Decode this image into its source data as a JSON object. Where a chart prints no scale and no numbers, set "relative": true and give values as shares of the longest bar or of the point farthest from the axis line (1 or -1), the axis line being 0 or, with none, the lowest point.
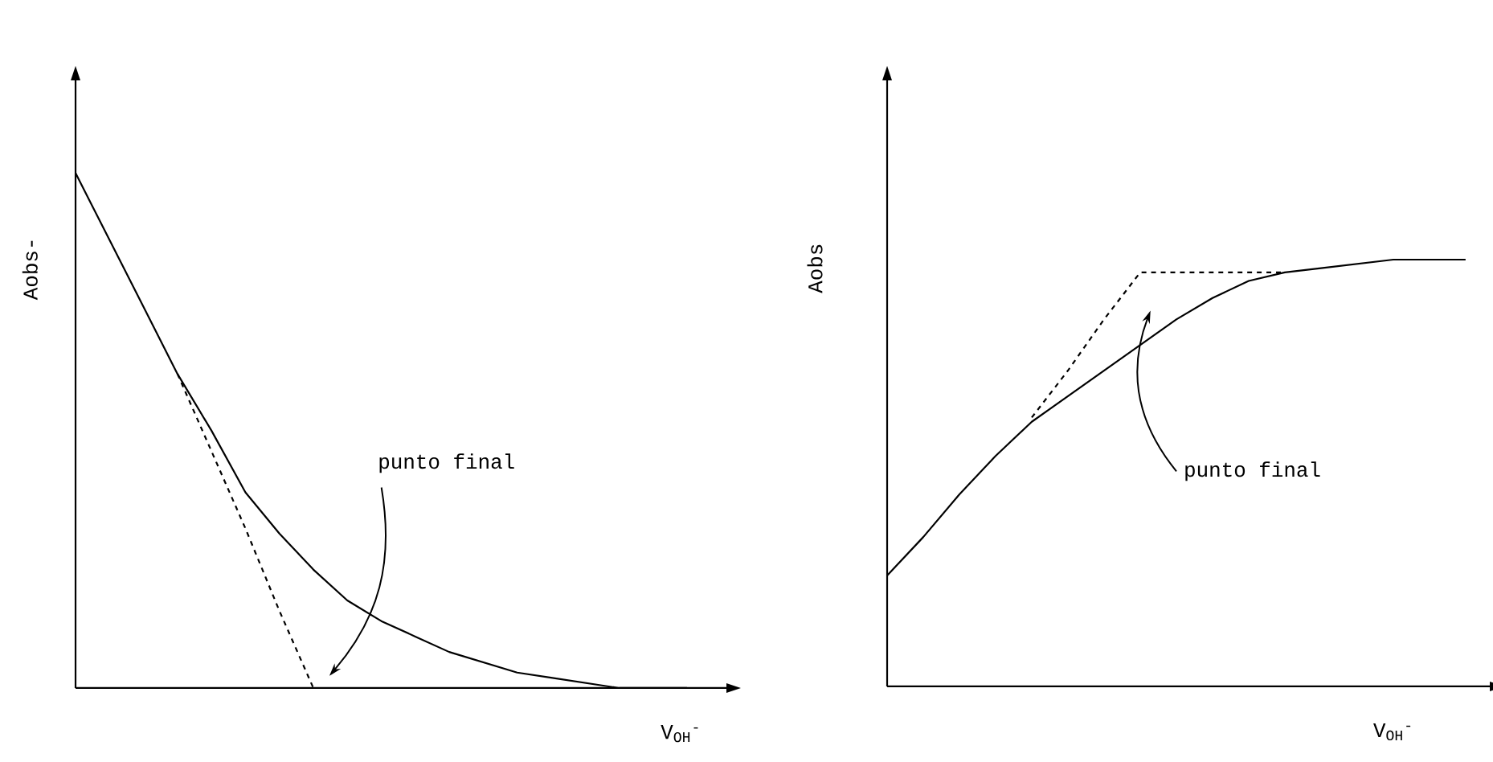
{
  "chart_data": [
    {
      "type": "line",
      "relative": true,
      "xlabel": "V$_{OH}$$^{-}$",
      "ylabel": "Aobs-",
      "annotations": [
        "punto final"
      ],
      "categories": [
        null,
        null,
        null,
        null,
        null,
        null,
        null,
        null,
        null,
        null,
        null,
        null,
        null,
        null,
        null,
        null,
        null,
        null,
        null,
        null
      ],
      "series": [
        {
          "color": "#000000",
          "line_style": "solid",
          "values": [
            1.0,
            0.87,
            0.74,
            0.61,
            0.5,
            0.38,
            0.3,
            0.23,
            0.17,
            0.13,
            0.1,
            0.07,
            0.05,
            0.03,
            0.02,
            0.01,
            0,
            0,
            0,
            null
          ]
        },
        {
          "color": "#000000",
          "line_style": "dashed",
          "values": [
            null,
            null,
            null,
            0.61,
            0.46,
            0.31,
            0.15,
            0,
            null,
            null,
            null,
            null,
            null,
            null,
            null,
            null,
            null,
            null,
            null,
            null
          ]
        }
      ]
    },
    {
      "type": "line",
      "relative": true,
      "xlabel": "V$_{OH}$$^{-}$",
      "ylabel": "Aobs",
      "annotations": [
        "punto final"
      ],
      "categories": [
        null,
        null,
        null,
        null,
        null,
        null,
        null,
        null,
        null,
        null,
        null,
        null,
        null,
        null,
        null,
        null,
        null
      ],
      "series": [
        {
          "color": "#000000",
          "line_style": "solid",
          "values": [
            0.26,
            0.35,
            0.45,
            0.54,
            0.62,
            0.68,
            0.74,
            0.8,
            0.86,
            0.91,
            0.95,
            0.97,
            0.98,
            0.99,
            1.0,
            1.0,
            1.0
          ]
        },
        {
          "color": "#000000",
          "line_style": "dashed",
          "values": [
            null,
            null,
            null,
            null,
            0.63,
            0.74,
            0.86,
            0.97,
            0.97,
            0.97,
            0.97,
            0.97,
            null,
            null,
            null,
            null,
            null
          ]
        }
      ]
    }
  ]
}
